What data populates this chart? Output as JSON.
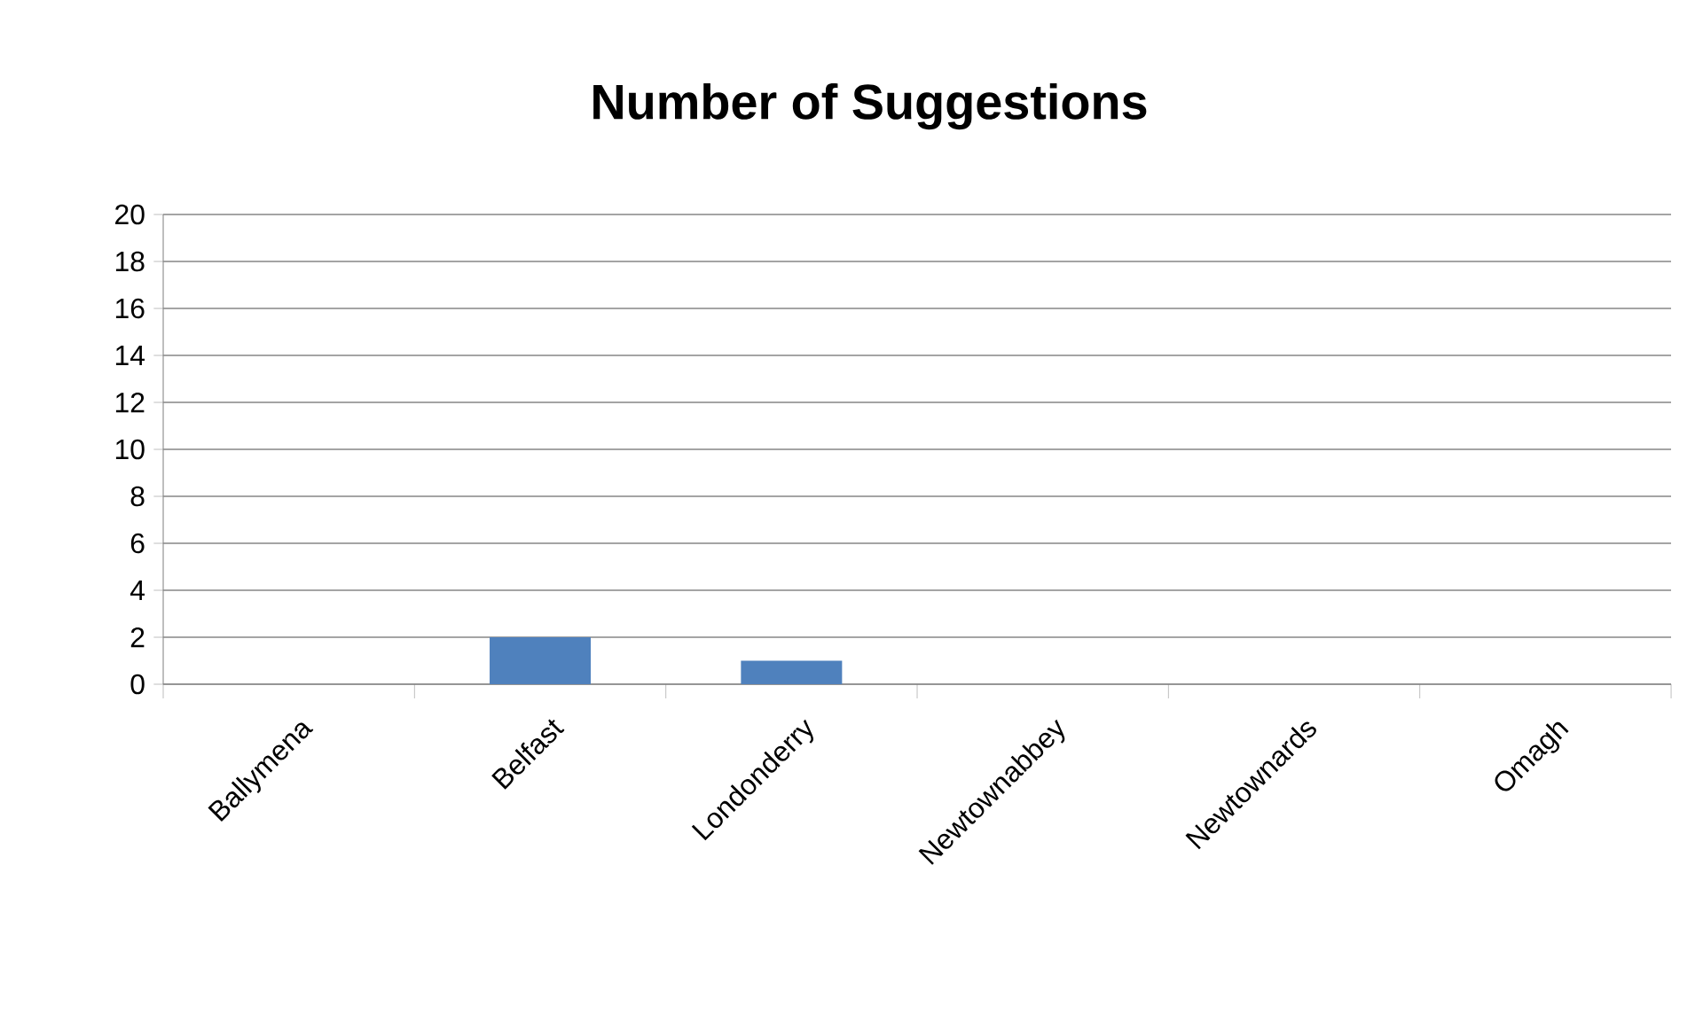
{
  "chart_data": {
    "type": "bar",
    "title": "Number of Suggestions",
    "categories": [
      "Ballymena",
      "Belfast",
      "Londonderry",
      "Newtownabbey",
      "Newtownards",
      "Omagh"
    ],
    "values": [
      0,
      2,
      1,
      0,
      0,
      0
    ],
    "color": "#4f81bd",
    "ylim": [
      0,
      20
    ],
    "yticks": [
      0,
      2,
      4,
      6,
      8,
      10,
      12,
      14,
      16,
      18,
      20
    ],
    "grid": "y"
  }
}
